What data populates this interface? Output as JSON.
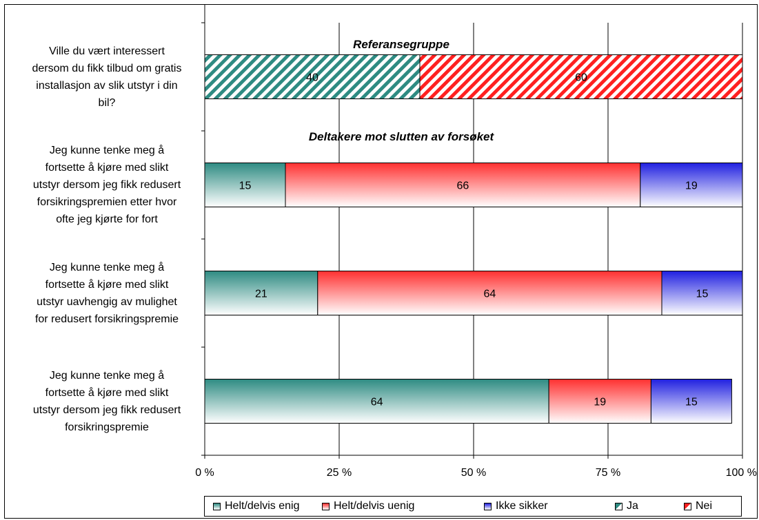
{
  "chart_data": {
    "type": "bar",
    "orientation": "horizontal",
    "stacked": "100%",
    "xlim": [
      0,
      100
    ],
    "x_ticks": [
      "0 %",
      "25 %",
      "50 %",
      "75 %",
      "100 %"
    ],
    "grid": true,
    "legend_position": "bottom",
    "annotations": [
      "Referansegruppe",
      "Deltakere mot slutten av forsøket"
    ],
    "groups": [
      {
        "category": "Ville du vært interessert dersom du fikk tilbud om gratis installasjon av slik utstyr i din bil?",
        "lines": [
          "Ville du vært interessert",
          "dersom du fikk tilbud om gratis",
          "installasjon av slik utstyr i din",
          "bil?"
        ],
        "segments": [
          {
            "series": "Ja",
            "value": 40
          },
          {
            "series": "Nei",
            "value": 60
          }
        ]
      },
      {
        "category": "Jeg kunne tenke meg å fortsette å kjøre med slikt utstyr dersom jeg fikk redusert forsikringspremien etter hvor ofte jeg kjørte for fort",
        "lines": [
          "Jeg kunne tenke meg å",
          "fortsette å kjøre med slikt",
          "utstyr dersom jeg fikk redusert",
          "forsikringspremien etter hvor",
          "ofte jeg kjørte for fort"
        ],
        "segments": [
          {
            "series": "Helt/delvis enig",
            "value": 15
          },
          {
            "series": "Helt/delvis uenig",
            "value": 66
          },
          {
            "series": "Ikke sikker",
            "value": 19
          }
        ]
      },
      {
        "category": "Jeg kunne tenke meg å fortsette å kjøre med slikt utstyr uavhengig av mulighet for redusert forsikringspremie",
        "lines": [
          "Jeg kunne tenke meg å",
          "fortsette å kjøre med slikt",
          "utstyr uavhengig av mulighet",
          "for redusert forsikringspremie"
        ],
        "segments": [
          {
            "series": "Helt/delvis enig",
            "value": 21
          },
          {
            "series": "Helt/delvis uenig",
            "value": 64
          },
          {
            "series": "Ikke sikker",
            "value": 15
          }
        ]
      },
      {
        "category": "Jeg kunne tenke meg å fortsette å kjøre med slikt utstyr dersom jeg fikk redusert forsikringspremie",
        "lines": [
          "Jeg kunne tenke meg å",
          "fortsette å kjøre med slikt",
          "utstyr dersom jeg fikk redusert",
          "forsikringspremie"
        ],
        "segments": [
          {
            "series": "Helt/delvis enig",
            "value": 64
          },
          {
            "series": "Helt/delvis uenig",
            "value": 19
          },
          {
            "series": "Ikke sikker",
            "value": 15
          }
        ]
      }
    ],
    "legend": [
      {
        "name": "Helt/delvis enig",
        "color": "#2e8b82",
        "pattern": "gradient"
      },
      {
        "name": "Helt/delvis uenig",
        "color": "#ff3030",
        "pattern": "gradient"
      },
      {
        "name": "Ikke sikker",
        "color": "#2020e0",
        "pattern": "gradient"
      },
      {
        "name": "Ja",
        "color": "#2e8b82",
        "pattern": "diagonal-stripes"
      },
      {
        "name": "Nei",
        "color": "#ff2020",
        "pattern": "diagonal-stripes"
      }
    ]
  }
}
